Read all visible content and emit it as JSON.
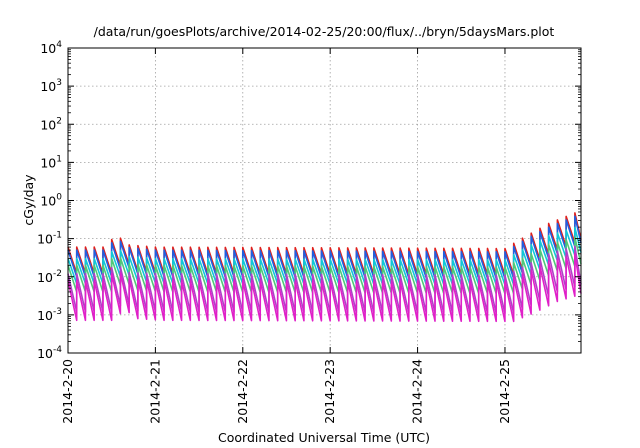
{
  "chart_data": {
    "type": "line",
    "title": "/data/run/goesPlots/archive/2014-02-25/20:00/flux/../bryn/5daysMars.plot",
    "xlabel": "Coordinated Universal Time (UTC)",
    "ylabel": "cGy/day",
    "y_scale": "log",
    "ylim": [
      0.0001,
      10000
    ],
    "xlim": [
      0,
      5.87
    ],
    "grid": true,
    "y_ticks": [
      {
        "value": 0.0001,
        "base": "10",
        "exp": "-4"
      },
      {
        "value": 0.001,
        "base": "10",
        "exp": "-3"
      },
      {
        "value": 0.01,
        "base": "10",
        "exp": "-2"
      },
      {
        "value": 0.1,
        "base": "10",
        "exp": "-1"
      },
      {
        "value": 1,
        "base": "10",
        "exp": "0"
      },
      {
        "value": 10,
        "base": "10",
        "exp": "1"
      },
      {
        "value": 100,
        "base": "10",
        "exp": "2"
      },
      {
        "value": 1000,
        "base": "10",
        "exp": "3"
      },
      {
        "value": 10000,
        "base": "10",
        "exp": "4"
      }
    ],
    "x_ticks": [
      {
        "value": 0,
        "label": "2014-2-20"
      },
      {
        "value": 1,
        "label": "2014-2-21"
      },
      {
        "value": 2,
        "label": "2014-2-22"
      },
      {
        "value": 3,
        "label": "2014-2-23"
      },
      {
        "value": 4,
        "label": "2014-2-24"
      },
      {
        "value": 5,
        "label": "2014-2-25"
      }
    ],
    "sawtooth_period_days": 0.1,
    "series": [
      {
        "color": "#e0201c",
        "peak": [
          [
            0,
            0.06
          ],
          [
            0.45,
            0.06
          ],
          [
            0.55,
            0.15
          ],
          [
            0.65,
            0.07
          ],
          [
            1,
            0.06
          ],
          [
            5,
            0.055
          ],
          [
            5.25,
            0.12
          ],
          [
            5.5,
            0.25
          ],
          [
            5.87,
            0.55
          ]
        ],
        "decay": 0.2
      },
      {
        "color": "#2060e0",
        "peak": [
          [
            0,
            0.05
          ],
          [
            0.45,
            0.05
          ],
          [
            0.55,
            0.12
          ],
          [
            0.65,
            0.06
          ],
          [
            1,
            0.05
          ],
          [
            5,
            0.045
          ],
          [
            5.25,
            0.1
          ],
          [
            5.5,
            0.2
          ],
          [
            5.87,
            0.45
          ]
        ],
        "decay": 0.2
      },
      {
        "color": "#10c8d8",
        "peak": [
          [
            0,
            0.03
          ],
          [
            0.45,
            0.03
          ],
          [
            0.55,
            0.07
          ],
          [
            0.65,
            0.035
          ],
          [
            1,
            0.03
          ],
          [
            5,
            0.028
          ],
          [
            5.25,
            0.06
          ],
          [
            5.5,
            0.12
          ],
          [
            5.87,
            0.22
          ]
        ],
        "decay": 0.22
      },
      {
        "color": "#50c878",
        "peak": [
          [
            0,
            0.02
          ],
          [
            0.45,
            0.02
          ],
          [
            0.55,
            0.045
          ],
          [
            0.65,
            0.022
          ],
          [
            1,
            0.02
          ],
          [
            5,
            0.018
          ],
          [
            5.25,
            0.035
          ],
          [
            5.5,
            0.07
          ],
          [
            5.87,
            0.12
          ]
        ],
        "decay": 0.2
      },
      {
        "color": "#b040c8",
        "peak": [
          [
            0,
            0.012
          ],
          [
            0.45,
            0.012
          ],
          [
            0.55,
            0.025
          ],
          [
            0.65,
            0.013
          ],
          [
            1,
            0.012
          ],
          [
            5,
            0.011
          ],
          [
            5.25,
            0.02
          ],
          [
            5.5,
            0.04
          ],
          [
            5.87,
            0.07
          ]
        ],
        "decay": 0.1
      },
      {
        "color": "#e020c8",
        "peak": [
          [
            0,
            0.008
          ],
          [
            0.45,
            0.008
          ],
          [
            0.55,
            0.018
          ],
          [
            0.65,
            0.009
          ],
          [
            1,
            0.008
          ],
          [
            5,
            0.0075
          ],
          [
            5.25,
            0.013
          ],
          [
            5.5,
            0.025
          ],
          [
            5.87,
            0.045
          ]
        ],
        "decay": 0.09
      }
    ]
  }
}
